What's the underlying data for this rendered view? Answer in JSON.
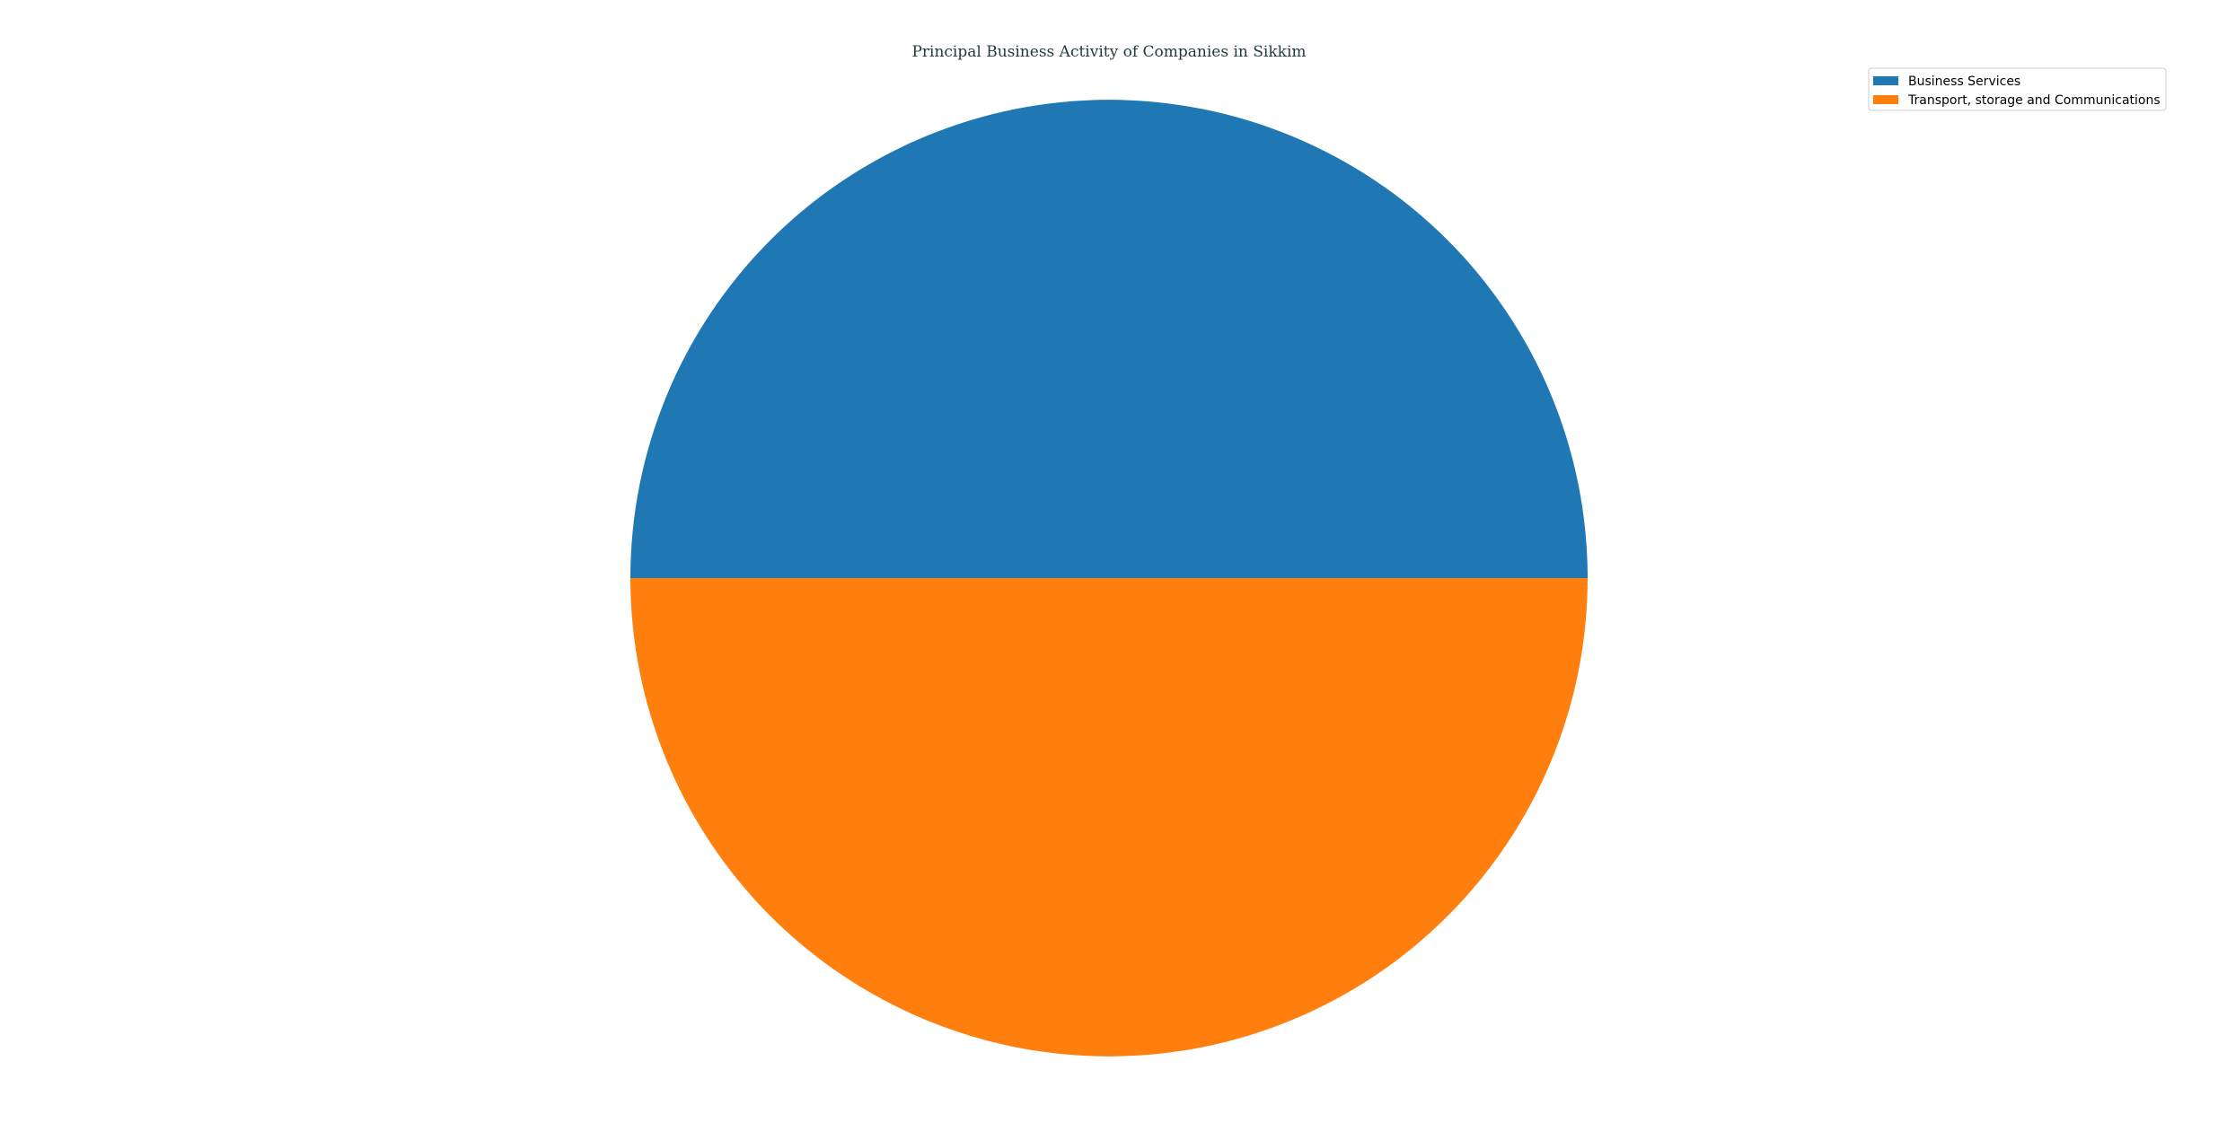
{
  "chart_data": {
    "type": "pie",
    "title": "Principal Business Activity of Companies in Sikkim",
    "labels": [
      "Business Services",
      "Transport, storage and Communications"
    ],
    "values": [
      1,
      1
    ],
    "colors": [
      "#1f77b4",
      "#ff7f0e"
    ],
    "start_angle_deg": 0,
    "direction": "counterclockwise",
    "legend_position": "top-right"
  }
}
